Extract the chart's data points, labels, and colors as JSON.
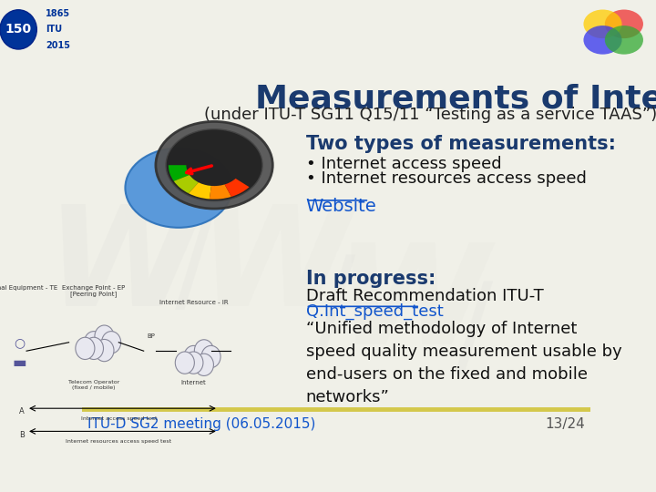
{
  "title": "Measurements of Internet speed",
  "subtitle": "(under ITU-T SG11 Q15/11 “Testing as a service TAAS”)",
  "background_color": "#f0f0e8",
  "title_color": "#1a3a6e",
  "title_fontsize": 26,
  "subtitle_fontsize": 13,
  "subtitle_color": "#222222",
  "section1_header": "Two types of measurements:",
  "section1_header_color": "#1a3a6e",
  "section1_header_fontsize": 15,
  "bullet1": "Internet access speed",
  "bullet2": "Internet resources access speed",
  "bullet_color": "#111111",
  "bullet_fontsize": 13,
  "website_text": "Website",
  "website_color": "#1155cc",
  "website_fontsize": 14,
  "section2_header": "In progress:",
  "section2_header_color": "#1a3a6e",
  "section2_header_fontsize": 15,
  "draft_line": "Draft Recommendation ITU-T",
  "draft_color": "#111111",
  "draft_fontsize": 13,
  "link_text": "Q.Int_speed_test",
  "link_color": "#1155cc",
  "link_fontsize": 13,
  "quote_text": "“Unified methodology of Internet\nspeed quality measurement usable by\nend-users on the fixed and mobile\nnetworks”",
  "quote_color": "#111111",
  "quote_fontsize": 13,
  "footer_left": "ITU-D SG2 meeting (06.05.2015)",
  "footer_right": "13/24",
  "footer_color": "#1155cc",
  "footer_fontsize": 11,
  "footer_line_color": "#d4c84a",
  "watermark_color": "#c8c8c8"
}
